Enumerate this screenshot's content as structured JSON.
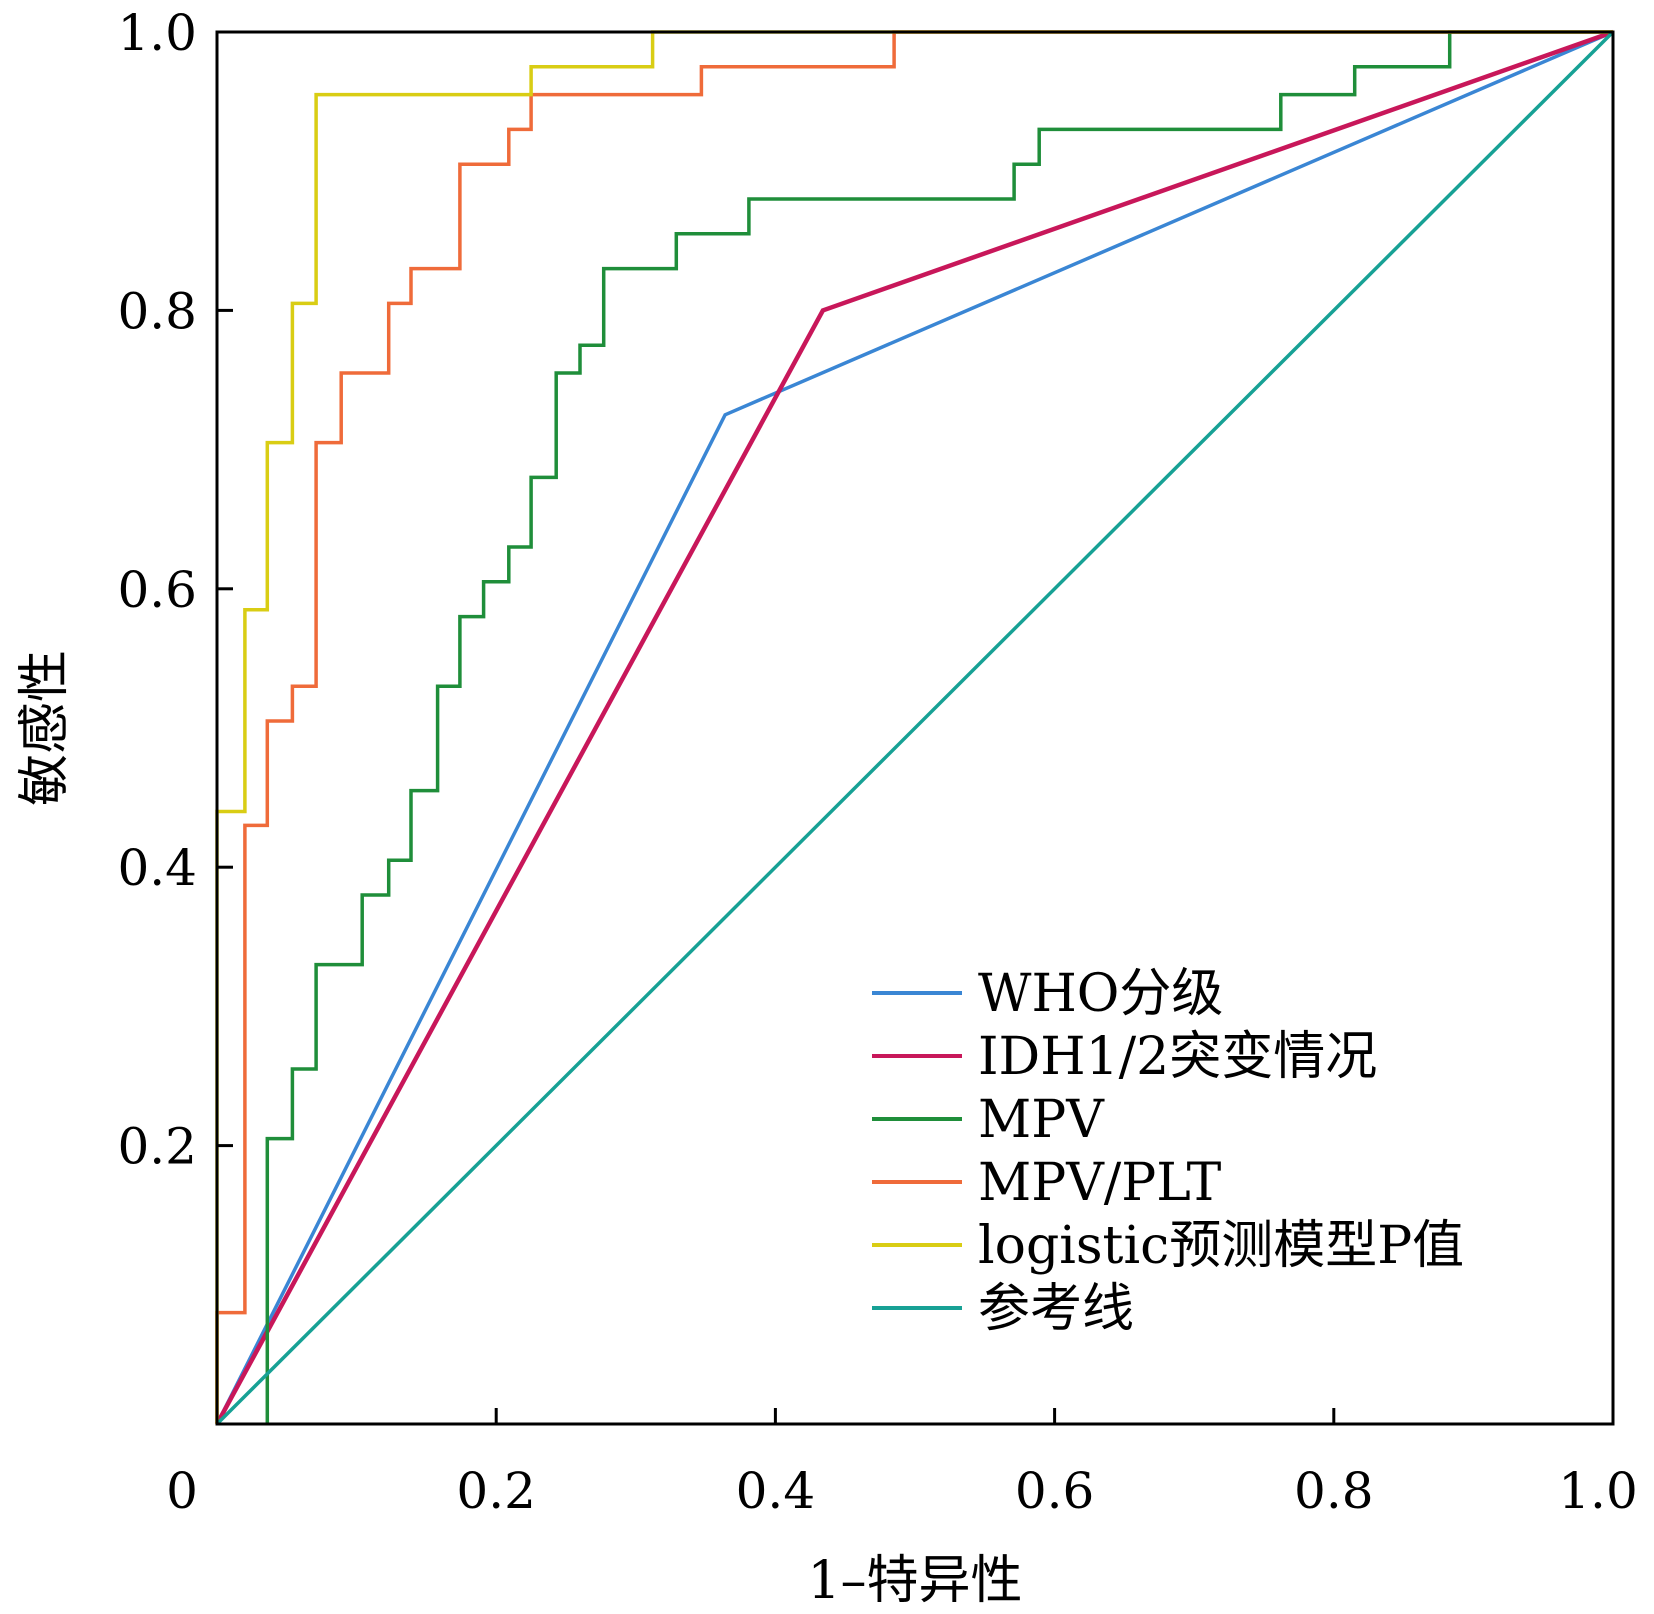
{
  "chart_data": {
    "type": "line",
    "title": "",
    "xlabel": "1–特异性",
    "ylabel": "敏感性",
    "xlim": [
      0,
      1.0
    ],
    "ylim": [
      0,
      1.0
    ],
    "x_ticks": [
      "0",
      "0.2",
      "0.4",
      "0.6",
      "0.8",
      "1.0"
    ],
    "y_ticks": [
      "0.2",
      "0.4",
      "0.6",
      "0.8",
      "1.0"
    ],
    "x_tick_values": [
      0,
      0.2,
      0.4,
      0.6,
      0.8,
      1.0
    ],
    "y_tick_values": [
      0.2,
      0.4,
      0.6,
      0.8,
      1.0
    ],
    "grid": false,
    "legend_position": "bottom-right",
    "series": [
      {
        "name": "WHO分级",
        "color": "#3a86d4",
        "points": [
          [
            0,
            0
          ],
          [
            0.364,
            0.725
          ],
          [
            1.0,
            1.0
          ]
        ]
      },
      {
        "name": "IDH1/2突变情况",
        "color": "#c8175a",
        "points": [
          [
            0,
            0
          ],
          [
            0.434,
            0.8
          ],
          [
            1.0,
            1.0
          ]
        ]
      },
      {
        "name": "MPV",
        "color": "#1f8e3a",
        "points": [
          [
            0.036,
            0
          ],
          [
            0.036,
            0.205
          ],
          [
            0.054,
            0.205
          ],
          [
            0.054,
            0.255
          ],
          [
            0.071,
            0.255
          ],
          [
            0.071,
            0.33
          ],
          [
            0.104,
            0.33
          ],
          [
            0.104,
            0.38
          ],
          [
            0.123,
            0.38
          ],
          [
            0.123,
            0.405
          ],
          [
            0.139,
            0.405
          ],
          [
            0.139,
            0.455
          ],
          [
            0.158,
            0.455
          ],
          [
            0.158,
            0.53
          ],
          [
            0.174,
            0.53
          ],
          [
            0.174,
            0.58
          ],
          [
            0.191,
            0.58
          ],
          [
            0.191,
            0.605
          ],
          [
            0.209,
            0.605
          ],
          [
            0.209,
            0.63
          ],
          [
            0.225,
            0.63
          ],
          [
            0.225,
            0.68
          ],
          [
            0.243,
            0.68
          ],
          [
            0.243,
            0.755
          ],
          [
            0.26,
            0.755
          ],
          [
            0.26,
            0.775
          ],
          [
            0.277,
            0.775
          ],
          [
            0.277,
            0.83
          ],
          [
            0.329,
            0.83
          ],
          [
            0.329,
            0.855
          ],
          [
            0.381,
            0.855
          ],
          [
            0.381,
            0.88
          ],
          [
            0.571,
            0.88
          ],
          [
            0.571,
            0.905
          ],
          [
            0.589,
            0.905
          ],
          [
            0.589,
            0.93
          ],
          [
            0.762,
            0.93
          ],
          [
            0.762,
            0.955
          ],
          [
            0.815,
            0.955
          ],
          [
            0.815,
            0.975
          ],
          [
            0.883,
            0.975
          ],
          [
            0.883,
            1.0
          ],
          [
            1.0,
            1.0
          ]
        ]
      },
      {
        "name": "MPV/PLT",
        "color": "#ef6b3a",
        "points": [
          [
            0,
            0
          ],
          [
            0,
            0.08
          ],
          [
            0.02,
            0.08
          ],
          [
            0.02,
            0.43
          ],
          [
            0.036,
            0.43
          ],
          [
            0.036,
            0.505
          ],
          [
            0.054,
            0.505
          ],
          [
            0.054,
            0.53
          ],
          [
            0.071,
            0.53
          ],
          [
            0.071,
            0.705
          ],
          [
            0.089,
            0.705
          ],
          [
            0.089,
            0.755
          ],
          [
            0.123,
            0.755
          ],
          [
            0.123,
            0.805
          ],
          [
            0.139,
            0.805
          ],
          [
            0.139,
            0.83
          ],
          [
            0.174,
            0.83
          ],
          [
            0.174,
            0.905
          ],
          [
            0.209,
            0.905
          ],
          [
            0.209,
            0.93
          ],
          [
            0.225,
            0.93
          ],
          [
            0.225,
            0.955
          ],
          [
            0.347,
            0.955
          ],
          [
            0.347,
            0.975
          ],
          [
            0.485,
            0.975
          ],
          [
            0.485,
            1.0
          ],
          [
            1.0,
            1.0
          ]
        ]
      },
      {
        "name": "logistic预测模型P值",
        "color": "#d9cd14",
        "points": [
          [
            0,
            0
          ],
          [
            0,
            0.44
          ],
          [
            0.02,
            0.44
          ],
          [
            0.02,
            0.585
          ],
          [
            0.036,
            0.585
          ],
          [
            0.036,
            0.705
          ],
          [
            0.054,
            0.705
          ],
          [
            0.054,
            0.805
          ],
          [
            0.071,
            0.805
          ],
          [
            0.071,
            0.955
          ],
          [
            0.225,
            0.955
          ],
          [
            0.225,
            0.975
          ],
          [
            0.312,
            0.975
          ],
          [
            0.312,
            1.0
          ],
          [
            1.0,
            1.0
          ]
        ]
      },
      {
        "name": "参考线",
        "color": "#17a195",
        "points": [
          [
            0,
            0
          ],
          [
            1.0,
            1.0
          ]
        ]
      }
    ]
  }
}
